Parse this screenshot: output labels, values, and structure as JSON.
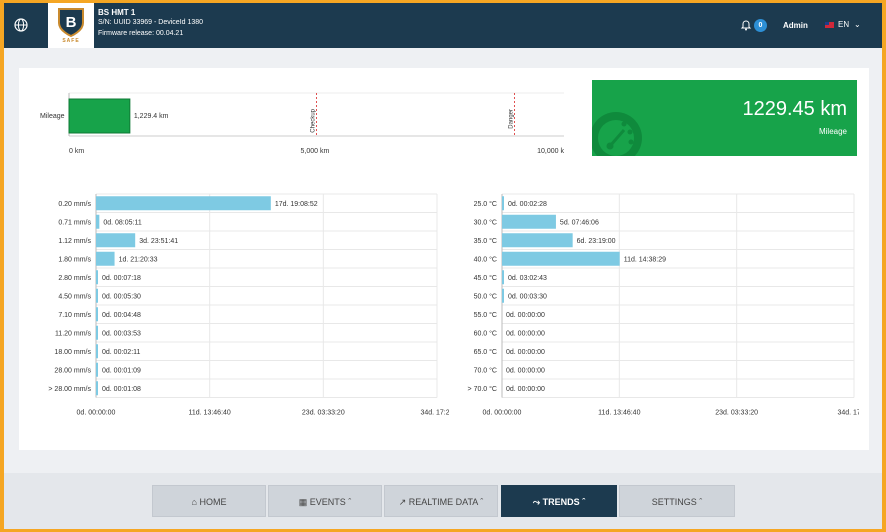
{
  "header": {
    "device_name": "BS HMT 1",
    "serial": "S/N: UUID 33969 - DeviceId 1380",
    "firmware": "Firmware release: 00.04.21",
    "notifications": "0",
    "user": "Admin",
    "language": "EN",
    "logo_text": "SAFE"
  },
  "mileage": {
    "label": "Mileage",
    "value_label": "1,229.4 km",
    "value": 1229.4,
    "max": 10000,
    "markers": [
      {
        "label": "Checkup",
        "value": 5000
      },
      {
        "label": "Danger",
        "value": 9000
      }
    ],
    "ticks": [
      "0 km",
      "5,000 km",
      "10,000 k"
    ]
  },
  "mileage_card": {
    "value": "1229.45 km",
    "label": "Mileage",
    "icon": "gauge-icon"
  },
  "colors": {
    "bar": "#7ecae3",
    "mileage": "#17a34a",
    "header": "#1c3a4f"
  },
  "chart_data": [
    {
      "type": "bar",
      "orientation": "horizontal",
      "categories": [
        "0.20 mm/s",
        "0.71 mm/s",
        "1.12 mm/s",
        "1.80 mm/s",
        "2.80 mm/s",
        "4.50 mm/s",
        "7.10 mm/s",
        "11.20 mm/s",
        "18.00 mm/s",
        "28.00 mm/s",
        "> 28.00 mm/s"
      ],
      "labels": [
        "17d. 19:08:52",
        "0d. 08:05:11",
        "3d. 23:51:41",
        "1d. 21:20:33",
        "0d. 00:07:18",
        "0d. 00:05:30",
        "0d. 00:04:48",
        "0d. 00:03:53",
        "0d. 00:02:11",
        "0d. 00:01:09",
        "0d. 00:01:08"
      ],
      "values": [
        17.8,
        0.34,
        3.99,
        1.89,
        0.005,
        0.004,
        0.003,
        0.003,
        0.002,
        0.001,
        0.001
      ],
      "xlim": [
        0,
        34.72
      ],
      "ticks": [
        "0d. 00:00:00",
        "11d. 13:46:40",
        "23d. 03:33:20",
        "34d. 17:20"
      ]
    },
    {
      "type": "bar",
      "orientation": "horizontal",
      "categories": [
        "25.0 °C",
        "30.0 °C",
        "35.0 °C",
        "40.0 °C",
        "45.0 °C",
        "50.0 °C",
        "55.0 °C",
        "60.0 °C",
        "65.0 °C",
        "70.0 °C",
        "> 70.0 °C"
      ],
      "labels": [
        "0d. 00:02:28",
        "5d. 07:46:06",
        "6d. 23:19:00",
        "11d. 14:38:29",
        "0d. 03:02:43",
        "0d. 00:03:30",
        "0d. 00:00:00",
        "0d. 00:00:00",
        "0d. 00:00:00",
        "0d. 00:00:00",
        "0d. 00:00:00"
      ],
      "values": [
        0.002,
        5.32,
        6.97,
        11.61,
        0.13,
        0.002,
        0,
        0,
        0,
        0,
        0
      ],
      "xlim": [
        0,
        34.72
      ],
      "ticks": [
        "0d. 00:00:00",
        "11d. 13:46:40",
        "23d. 03:33:20",
        "34d. 17:20"
      ]
    }
  ],
  "nav": [
    {
      "label": "HOME",
      "icon": "home-icon",
      "active": false,
      "chevron": ""
    },
    {
      "label": "EVENTS",
      "icon": "calendar-icon",
      "active": false,
      "chevron": "^"
    },
    {
      "label": "REALTIME DATA",
      "icon": "chart-line-icon",
      "active": false,
      "chevron": "^"
    },
    {
      "label": "TRENDS",
      "icon": "trends-icon",
      "active": true,
      "chevron": "^"
    },
    {
      "label": "SETTINGS",
      "icon": "",
      "active": false,
      "chevron": "^"
    }
  ]
}
